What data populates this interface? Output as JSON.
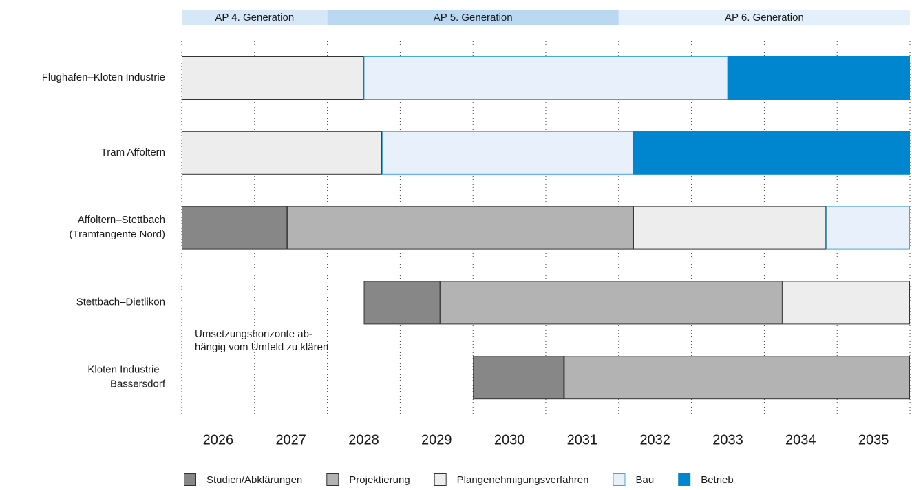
{
  "chart_data": {
    "type": "gantt",
    "xlim": [
      2026,
      2036
    ],
    "years": [
      2026,
      2027,
      2028,
      2029,
      2030,
      2031,
      2032,
      2033,
      2034,
      2035
    ],
    "generations": [
      {
        "label": "AP 4. Generation",
        "start": 2026,
        "end": 2028,
        "color": "#d6e8f7"
      },
      {
        "label": "AP 5. Generation",
        "start": 2028,
        "end": 2032,
        "color": "#bad8f2"
      },
      {
        "label": "AP 6. Generation",
        "start": 2032,
        "end": 2036,
        "color": "#e3effa"
      }
    ],
    "phases": [
      {
        "name": "Studien/Abklärungen",
        "color": "#878787",
        "border": "#333333"
      },
      {
        "name": "Projektierung",
        "color": "#b3b3b3",
        "border": "#333333"
      },
      {
        "name": "Plangenehmigungsverfahren",
        "color": "#ededed",
        "border": "#333333"
      },
      {
        "name": "Bau",
        "color": "#e8f1fb",
        "border": "#4aa3d8"
      },
      {
        "name": "Betrieb",
        "color": "#0085cf",
        "border": "#0085cf"
      }
    ],
    "tasks": [
      {
        "label": [
          "Flughafen–Kloten Industrie"
        ],
        "segments": [
          {
            "phase": 2,
            "start": 2026,
            "end": 2028.5
          },
          {
            "phase": 3,
            "start": 2028.5,
            "end": 2033.5
          },
          {
            "phase": 4,
            "start": 2033.5,
            "end": 2036
          }
        ]
      },
      {
        "label": [
          "Tram Affoltern"
        ],
        "segments": [
          {
            "phase": 2,
            "start": 2026,
            "end": 2028.75
          },
          {
            "phase": 3,
            "start": 2028.75,
            "end": 2032.2
          },
          {
            "phase": 4,
            "start": 2032.2,
            "end": 2036
          }
        ]
      },
      {
        "label": [
          "Affoltern–Stettbach",
          "(Tramtangente Nord)"
        ],
        "segments": [
          {
            "phase": 0,
            "start": 2026,
            "end": 2027.45
          },
          {
            "phase": 1,
            "start": 2027.45,
            "end": 2032.2
          },
          {
            "phase": 2,
            "start": 2032.2,
            "end": 2034.85
          },
          {
            "phase": 3,
            "start": 2034.85,
            "end": 2036
          }
        ]
      },
      {
        "label": [
          "Stettbach–Dietlikon"
        ],
        "segments": [
          {
            "phase": 0,
            "start": 2028.5,
            "end": 2029.55
          },
          {
            "phase": 1,
            "start": 2029.55,
            "end": 2034.25
          },
          {
            "phase": 2,
            "start": 2034.25,
            "end": 2036
          }
        ]
      },
      {
        "label": [
          "Kloten Industrie–",
          "Bassersdorf"
        ],
        "segments": [
          {
            "phase": 0,
            "start": 2030,
            "end": 2031.25
          },
          {
            "phase": 1,
            "start": 2031.25,
            "end": 2036
          }
        ]
      }
    ],
    "annotation": [
      "Umsetzungshorizonte ab-",
      "hängig vom Umfeld zu klären"
    ]
  }
}
